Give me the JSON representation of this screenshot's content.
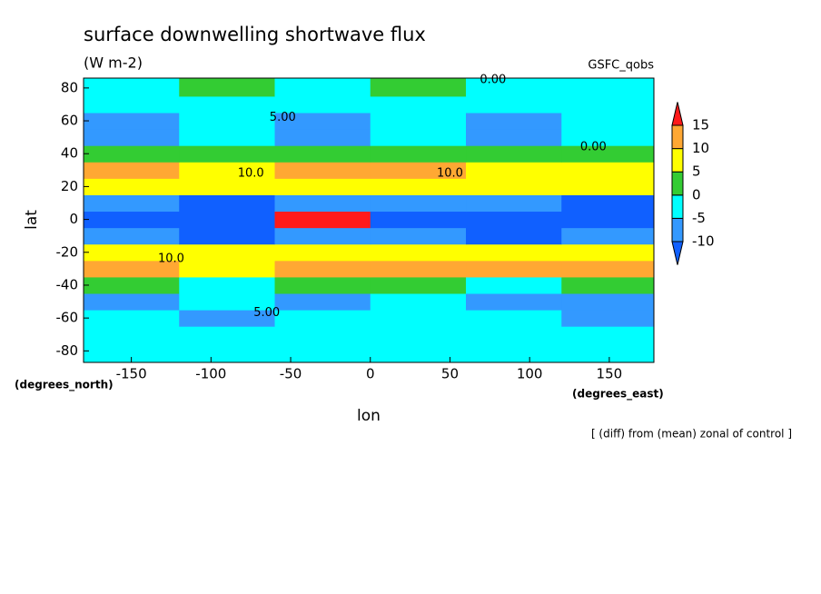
{
  "chart_data": {
    "type": "contour",
    "title": "surface downwelling shortwave flux",
    "units": "(W m-2)",
    "source": "GSFC_qobs",
    "xlabel": "lon",
    "ylabel": "lat",
    "x_unit_label": "(degrees_east)",
    "y_unit_label": "(degrees_north)",
    "footnote": "[ (diff) from (mean) zonal of control ]",
    "lon": [
      -150,
      -90,
      -30,
      30,
      90,
      150
    ],
    "lat": [
      -80,
      -70,
      -60,
      -50,
      -40,
      -30,
      -20,
      -10,
      0,
      10,
      20,
      30,
      40,
      50,
      60,
      70,
      80
    ],
    "z": [
      [
        -3,
        -3,
        -2,
        -3,
        -3,
        -3
      ],
      [
        -3,
        -2,
        -3,
        -3,
        -2,
        -3
      ],
      [
        -4,
        -6,
        -3,
        -4,
        -3,
        -6
      ],
      [
        -6,
        -3,
        -6,
        -4,
        -6,
        -7
      ],
      [
        2,
        -3,
        2,
        3,
        -2,
        3
      ],
      [
        11,
        8,
        11,
        11,
        12,
        11
      ],
      [
        7,
        6,
        8,
        7,
        7,
        8
      ],
      [
        -7,
        -11,
        -8,
        -7,
        -11,
        -8
      ],
      [
        -12,
        -11,
        16,
        -12,
        -11,
        -12
      ],
      [
        -7,
        -11,
        -8,
        -7,
        -8,
        -11
      ],
      [
        6,
        7,
        6,
        8,
        7,
        6
      ],
      [
        11,
        9,
        11,
        12,
        9,
        8
      ],
      [
        2,
        3,
        2,
        3,
        2,
        3
      ],
      [
        -6,
        -4,
        -7,
        -4,
        -6,
        -5
      ],
      [
        -7,
        -4,
        -6,
        -3,
        -6,
        -4
      ],
      [
        -3,
        -2,
        -3,
        -3,
        -2,
        -3
      ],
      [
        -2,
        2,
        -2,
        3,
        -2,
        -2
      ]
    ],
    "levels": [
      -10,
      -5,
      0,
      5,
      10,
      15
    ],
    "colors": [
      "#1060ff",
      "#3399ff",
      "#00ffff",
      "#33cc33",
      "#ffff00",
      "#ffa833",
      "#ff1a1a"
    ],
    "xlim": [
      -180,
      178
    ],
    "ylim": [
      -87,
      86
    ],
    "xticks": [
      -150,
      -100,
      -50,
      0,
      50,
      100,
      150
    ],
    "yticks": [
      -80,
      -60,
      -40,
      -20,
      0,
      20,
      40,
      60,
      80
    ],
    "annotations": [
      {
        "text": "0.00",
        "lon": 77,
        "lat": 85
      },
      {
        "text": "5.00",
        "lon": -55,
        "lat": 62
      },
      {
        "text": "10.0",
        "lon": -75,
        "lat": 28
      },
      {
        "text": "10.0",
        "lon": 50,
        "lat": 28
      },
      {
        "text": "10.0",
        "lon": -125,
        "lat": -24
      },
      {
        "text": "5.00",
        "lon": -65,
        "lat": -57
      },
      {
        "text": "0.00",
        "lon": 140,
        "lat": 44
      }
    ]
  }
}
